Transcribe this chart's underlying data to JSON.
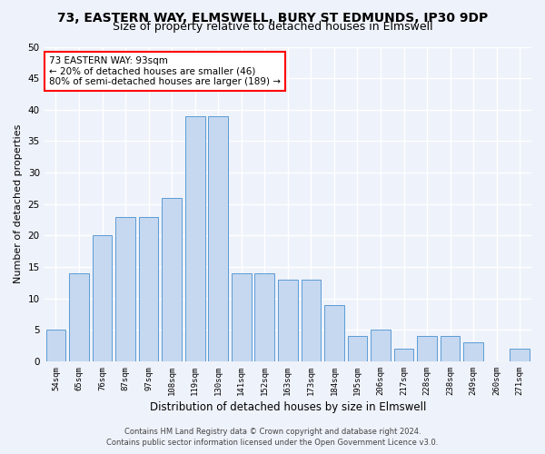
{
  "title": "73, EASTERN WAY, ELMSWELL, BURY ST EDMUNDS, IP30 9DP",
  "subtitle": "Size of property relative to detached houses in Elmswell",
  "xlabel": "Distribution of detached houses by size in Elmswell",
  "ylabel": "Number of detached properties",
  "bar_labels": [
    "54sqm",
    "65sqm",
    "76sqm",
    "87sqm",
    "97sqm",
    "108sqm",
    "119sqm",
    "130sqm",
    "141sqm",
    "152sqm",
    "163sqm",
    "173sqm",
    "184sqm",
    "195sqm",
    "206sqm",
    "217sqm",
    "228sqm",
    "238sqm",
    "249sqm",
    "260sqm",
    "271sqm"
  ],
  "bar_values": [
    5,
    14,
    20,
    23,
    23,
    26,
    39,
    39,
    14,
    14,
    13,
    13,
    9,
    4,
    5,
    2,
    4,
    4,
    3,
    0,
    2
  ],
  "bar_color": "#c5d8f0",
  "bar_edge_color": "#5b9bd5",
  "ylim": [
    0,
    50
  ],
  "yticks": [
    0,
    5,
    10,
    15,
    20,
    25,
    30,
    35,
    40,
    45,
    50
  ],
  "annotation_box_text": "73 EASTERN WAY: 93sqm\n← 20% of detached houses are smaller (46)\n80% of semi-detached houses are larger (189) →",
  "footer_line1": "Contains HM Land Registry data © Crown copyright and database right 2024.",
  "footer_line2": "Contains public sector information licensed under the Open Government Licence v3.0.",
  "bg_color": "#eef2fa",
  "grid_color": "#ffffff",
  "title_fontsize": 10,
  "subtitle_fontsize": 9,
  "xlabel_fontsize": 8.5,
  "ylabel_fontsize": 8
}
